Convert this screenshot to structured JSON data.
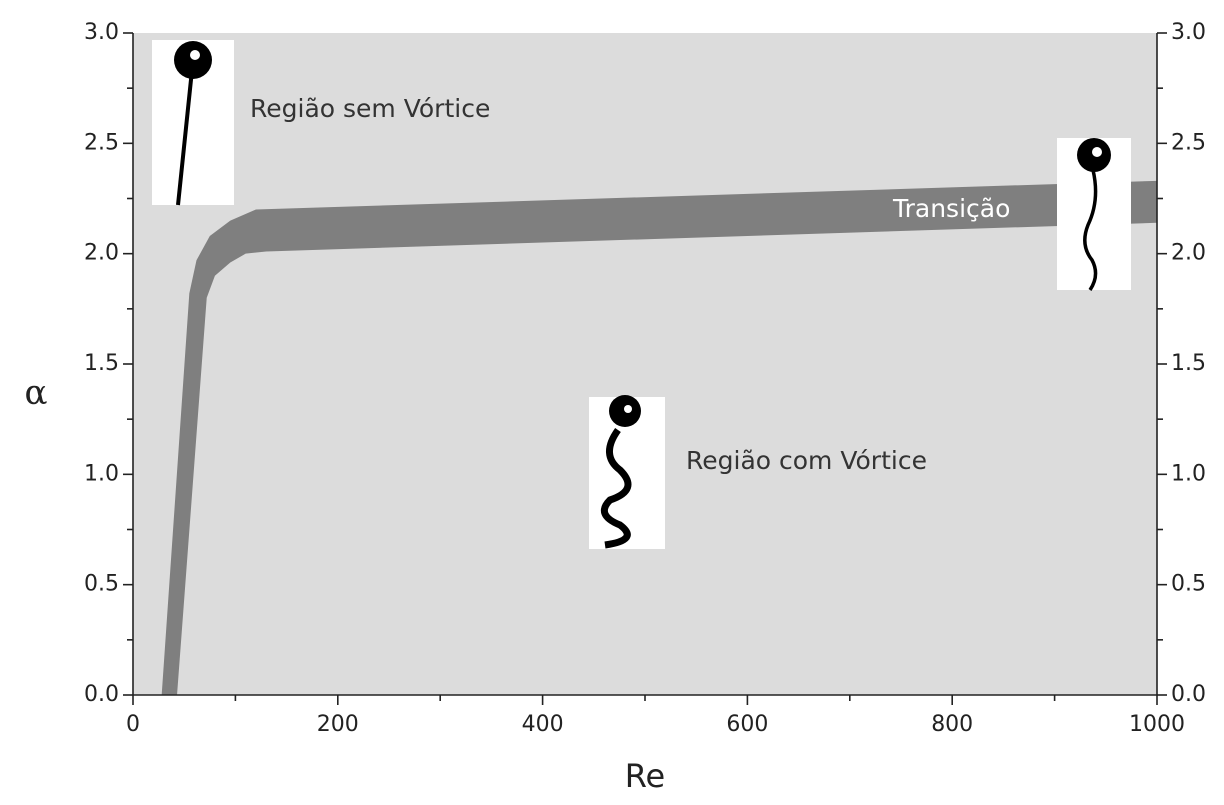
{
  "chart_data": {
    "type": "band",
    "xlabel": "Re",
    "ylabel": "α",
    "xlim": [
      0,
      1000
    ],
    "xticks": [
      0,
      200,
      400,
      600,
      800,
      1000
    ],
    "xminorticks": [
      100,
      300,
      500,
      700,
      900
    ],
    "ylim": [
      0,
      3
    ],
    "yticks": [
      {
        "value": 0,
        "label": "0.0"
      },
      0.5,
      {
        "value": 1,
        "label": "1.0"
      },
      1.5,
      {
        "value": 2,
        "label": "2.0"
      },
      2.5,
      {
        "value": 3,
        "label": "3.0"
      }
    ],
    "yminorticks": [
      0.25,
      0.75,
      1.25,
      1.75,
      2.25,
      2.75
    ],
    "y2lim": [
      0,
      3
    ],
    "y2ticks": [
      {
        "value": 0,
        "label": "0.0"
      },
      0.5,
      {
        "value": 1,
        "label": "1.0"
      },
      1.5,
      {
        "value": 2,
        "label": "2.0"
      },
      2.5,
      {
        "value": 3,
        "label": "3.0"
      }
    ],
    "background": "#dcdcdc",
    "series": [
      {
        "color": "#7f7f7f",
        "x": [
          28,
          55,
          62,
          75,
          95,
          120,
          1000
        ],
        "values": [
          0,
          1.82,
          1.97,
          2.08,
          2.15,
          2.2,
          2.33
        ]
      },
      {
        "color": "#7f7f7f",
        "x": [
          43,
          72,
          80,
          95,
          110,
          130,
          1000
        ],
        "values": [
          0,
          1.8,
          1.9,
          1.96,
          2.0,
          2.01,
          2.14
        ]
      }
    ],
    "annotations": [
      "Região sem Vórtice",
      "Transição",
      "Região com Vórtice"
    ]
  }
}
